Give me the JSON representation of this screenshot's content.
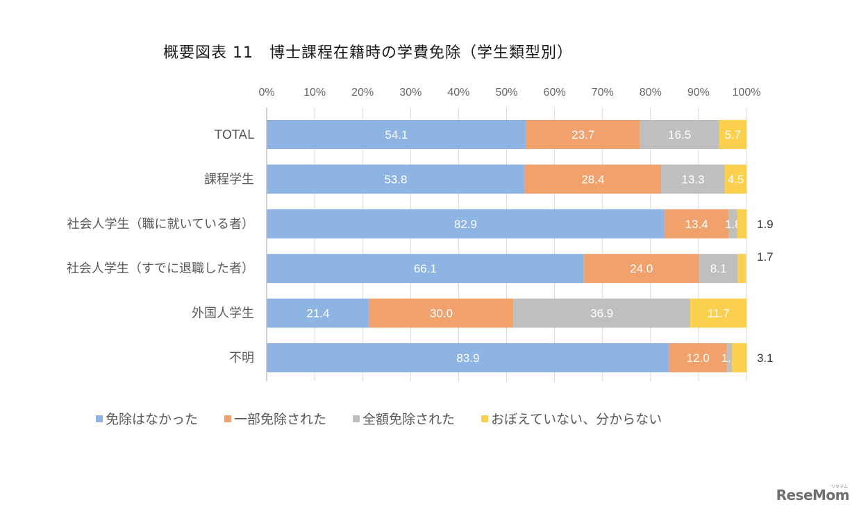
{
  "title": "概要図表 11　博士課程在籍時の学費免除（学生類型別）",
  "brand": {
    "logo_text": "ReseMom",
    "logo_kana": "リセマム"
  },
  "chart_data": {
    "type": "bar",
    "orientation": "horizontal",
    "stacked": "percent",
    "title": "概要図表 11　博士課程在籍時の学費免除（学生類型別）",
    "xlabel": "",
    "ylabel": "",
    "xlim": [
      0,
      100
    ],
    "x_ticks": [
      "0%",
      "10%",
      "20%",
      "30%",
      "40%",
      "50%",
      "60%",
      "70%",
      "80%",
      "90%",
      "100%"
    ],
    "grid": "vertical",
    "legend_position": "bottom",
    "categories": [
      "TOTAL",
      "課程学生",
      "社会人学生（職に就いている者）",
      "社会人学生（すでに退職した者）",
      "外国人学生",
      "不明"
    ],
    "series": [
      {
        "name": "免除はなかった",
        "color": "#8db4e2",
        "values": [
          54.1,
          53.8,
          82.9,
          66.1,
          21.4,
          83.9
        ]
      },
      {
        "name": "一部免除された",
        "color": "#f0a16c",
        "values": [
          23.7,
          28.4,
          13.4,
          24.0,
          30.0,
          12.0
        ]
      },
      {
        "name": "全額免除された",
        "color": "#bfbfbf",
        "values": [
          16.5,
          13.3,
          1.8,
          8.1,
          36.9,
          1.1
        ]
      },
      {
        "name": "おぼえていない、分からない",
        "color": "#fcd04f",
        "values": [
          5.7,
          4.5,
          1.9,
          1.7,
          11.7,
          3.1
        ]
      }
    ],
    "labels_outside": [
      {
        "category_index": 2,
        "series_index": 3,
        "text": "1.9"
      },
      {
        "category_index": 3,
        "series_index": 3,
        "text": "1.7"
      },
      {
        "category_index": 5,
        "series_index": 3,
        "text": "3.1"
      }
    ],
    "labels_hidden": [
      {
        "category_index": 3,
        "series_index": 3
      }
    ]
  }
}
